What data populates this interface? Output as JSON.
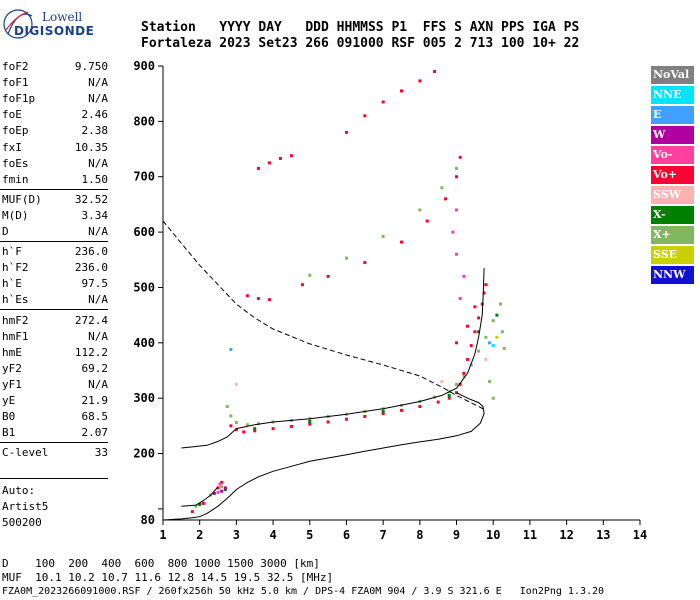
{
  "logo": {
    "line1": "Lowell",
    "line2": "DIGISONDE"
  },
  "header": {
    "row1": "Station   YYYY DAY   DDD HHMMSS P1  FFS S AXN PPS IGA PS",
    "row2": "Fortaleza 2023 Set23 266 091000 RSF 005 2 713 100 10+ 22"
  },
  "params": [
    {
      "name": "foF2",
      "value": "9.750"
    },
    {
      "name": "foF1",
      "value": "N/A"
    },
    {
      "name": "foF1p",
      "value": "N/A"
    },
    {
      "name": "foE",
      "value": "2.46"
    },
    {
      "name": "foEp",
      "value": "2.38"
    },
    {
      "name": "fxI",
      "value": "10.35"
    },
    {
      "name": "foEs",
      "value": "N/A"
    },
    {
      "name": "fmin",
      "value": "1.50"
    },
    {
      "name": "MUF(D)",
      "value": "32.52"
    },
    {
      "name": "M(D)",
      "value": "3.34"
    },
    {
      "name": "D",
      "value": "N/A"
    },
    {
      "name": "h`F",
      "value": "236.0"
    },
    {
      "name": "h`F2",
      "value": "236.0"
    },
    {
      "name": "h`E",
      "value": "97.5"
    },
    {
      "name": "h`Es",
      "value": "N/A"
    },
    {
      "name": "hmF2",
      "value": "272.4"
    },
    {
      "name": "hmF1",
      "value": "N/A"
    },
    {
      "name": "hmE",
      "value": "112.2"
    },
    {
      "name": "yF2",
      "value": "69.2"
    },
    {
      "name": "yF1",
      "value": "N/A"
    },
    {
      "name": "yE",
      "value": "21.9"
    },
    {
      "name": "B0",
      "value": "68.5"
    },
    {
      "name": "B1",
      "value": "2.07"
    },
    {
      "name": "C-level",
      "value": "33"
    }
  ],
  "autoscaler": {
    "line1": "Auto:",
    "line2": "Artist5",
    "line3": "500200"
  },
  "legend": [
    {
      "label": "NoVal",
      "color": "#808080"
    },
    {
      "label": "NNE",
      "color": "#00e5ff"
    },
    {
      "label": "E",
      "color": "#3fa0ff"
    },
    {
      "label": "W",
      "color": "#b000a0"
    },
    {
      "label": "Vo-",
      "color": "#ff40a0"
    },
    {
      "label": "Vo+",
      "color": "#ff0033"
    },
    {
      "label": "SSW",
      "color": "#ffb0b0"
    },
    {
      "label": "X-",
      "color": "#008000"
    },
    {
      "label": "X+",
      "color": "#80b860"
    },
    {
      "label": "SSE",
      "color": "#c8d000"
    },
    {
      "label": "NNW",
      "color": "#1010d0"
    }
  ],
  "footer": {
    "d_row": "D    100  200  400  600  800 1000 1500 3000 [km]",
    "muf_row": "MUF  10.1 10.2 10.7 11.6 12.8 14.5 19.5 32.5 [MHz]",
    "file_row": "FZA0M_2023266091000.RSF / 260fx256h 50 kHz 5.0 km / DPS-4 FZA0M 904 / 3.9 S 321.6 E   Ion2Png 1.3.20"
  },
  "chart_data": {
    "type": "scatter",
    "xlim": [
      1,
      14
    ],
    "ylim": [
      80,
      900
    ],
    "x_ticks": [
      1,
      2,
      3,
      4,
      5,
      6,
      7,
      8,
      9,
      10,
      11,
      12,
      13,
      14
    ],
    "y_ticks": [
      100,
      200,
      300,
      400,
      500,
      600,
      700,
      800,
      900
    ],
    "y_tick_labels": [
      "",
      "200",
      "300",
      "400",
      "500",
      "600",
      "700",
      "800",
      "900"
    ],
    "x_tick_labels": [
      "1",
      "2",
      "3",
      "4",
      "5",
      "6",
      "7",
      "8",
      "9",
      "10",
      "11",
      "12",
      "13",
      "14"
    ],
    "y_axis_bottom_label": "80",
    "grid": false,
    "legend_position": "right",
    "series": [
      {
        "name": "X+",
        "color": "#80b860",
        "points": [
          [
            2.75,
            285
          ],
          [
            2.85,
            268
          ],
          [
            3.0,
            256
          ],
          [
            3.3,
            252
          ],
          [
            3.6,
            254
          ],
          [
            4.0,
            257
          ],
          [
            4.5,
            260
          ],
          [
            5.0,
            263
          ],
          [
            5.5,
            267
          ],
          [
            6.0,
            271
          ],
          [
            6.5,
            276
          ],
          [
            7.0,
            281
          ],
          [
            7.5,
            287
          ],
          [
            8.0,
            294
          ],
          [
            8.4,
            302
          ],
          [
            8.8,
            312
          ],
          [
            9.0,
            325
          ],
          [
            9.2,
            340
          ],
          [
            9.4,
            360
          ],
          [
            9.6,
            385
          ],
          [
            9.8,
            410
          ],
          [
            10.0,
            440
          ],
          [
            10.2,
            470
          ],
          [
            10.3,
            390
          ],
          [
            10.25,
            420
          ],
          [
            9.9,
            330
          ],
          [
            10.0,
            300
          ],
          [
            5.0,
            522
          ],
          [
            6.0,
            553
          ],
          [
            7.0,
            592
          ],
          [
            8.0,
            640
          ],
          [
            8.6,
            680
          ],
          [
            9.0,
            715
          ],
          [
            2.3,
            125
          ],
          [
            2.6,
            140
          ],
          [
            1.9,
            105
          ],
          [
            2.1,
            110
          ]
        ]
      },
      {
        "name": "Vo+",
        "color": "#ff0033",
        "points": [
          [
            2.85,
            250
          ],
          [
            3.0,
            243
          ],
          [
            3.2,
            239
          ],
          [
            3.5,
            241
          ],
          [
            4.0,
            245
          ],
          [
            4.5,
            249
          ],
          [
            5.0,
            253
          ],
          [
            5.5,
            257
          ],
          [
            6.0,
            262
          ],
          [
            6.5,
            267
          ],
          [
            7.0,
            272
          ],
          [
            7.5,
            278
          ],
          [
            8.0,
            285
          ],
          [
            8.5,
            293
          ],
          [
            8.8,
            300
          ],
          [
            9.0,
            310
          ],
          [
            9.1,
            325
          ],
          [
            9.2,
            345
          ],
          [
            9.3,
            370
          ],
          [
            9.4,
            395
          ],
          [
            9.5,
            420
          ],
          [
            9.6,
            445
          ],
          [
            9.7,
            470
          ],
          [
            9.75,
            490
          ],
          [
            9.8,
            505
          ],
          [
            9.5,
            465
          ],
          [
            9.3,
            430
          ],
          [
            9.0,
            400
          ],
          [
            3.3,
            485
          ],
          [
            3.6,
            480
          ],
          [
            3.9,
            478
          ],
          [
            4.8,
            505
          ],
          [
            5.5,
            520
          ],
          [
            6.5,
            545
          ],
          [
            7.5,
            582
          ],
          [
            8.2,
            620
          ],
          [
            8.7,
            660
          ],
          [
            9.0,
            700
          ],
          [
            9.1,
            735
          ],
          [
            3.6,
            715
          ],
          [
            3.9,
            725
          ],
          [
            4.2,
            733
          ],
          [
            4.5,
            738
          ],
          [
            6.0,
            780
          ],
          [
            6.5,
            810
          ],
          [
            7.0,
            835
          ],
          [
            7.5,
            855
          ],
          [
            8.0,
            873
          ],
          [
            8.4,
            890
          ],
          [
            1.8,
            95
          ],
          [
            2.1,
            110
          ],
          [
            2.5,
            138
          ],
          [
            2.6,
            148
          ]
        ]
      },
      {
        "name": "Vo-",
        "color": "#ff40a0",
        "points": [
          [
            9.1,
            480
          ],
          [
            9.2,
            520
          ],
          [
            9.0,
            560
          ],
          [
            8.9,
            600
          ],
          [
            9.0,
            640
          ],
          [
            2.5,
            130
          ],
          [
            2.55,
            145
          ]
        ]
      },
      {
        "name": "X-",
        "color": "#008000",
        "points": [
          [
            3.5,
            245
          ],
          [
            5.0,
            258
          ],
          [
            7.0,
            276
          ],
          [
            8.8,
            305
          ],
          [
            9.6,
            420
          ],
          [
            10.1,
            450
          ],
          [
            2.0,
            108
          ],
          [
            2.7,
            135
          ]
        ]
      },
      {
        "name": "W",
        "color": "#b000a0",
        "points": [
          [
            2.4,
            128
          ],
          [
            2.6,
            132
          ],
          [
            2.7,
            138
          ]
        ]
      },
      {
        "name": "SSW",
        "color": "#ffb0b0",
        "points": [
          [
            8.6,
            330
          ],
          [
            9.8,
            370
          ],
          [
            3.0,
            325
          ]
        ]
      },
      {
        "name": "E",
        "color": "#3fa0ff",
        "points": [
          [
            2.85,
            388
          ],
          [
            9.9,
            400
          ]
        ]
      },
      {
        "name": "NNE",
        "color": "#00e5ff",
        "points": [
          [
            10.0,
            395
          ]
        ]
      },
      {
        "name": "SSE",
        "color": "#c8d000",
        "points": [
          [
            10.1,
            410
          ]
        ]
      }
    ],
    "trace_curve": [
      [
        1.5,
        210
      ],
      [
        1.8,
        212
      ],
      [
        2.2,
        215
      ],
      [
        2.5,
        222
      ],
      [
        2.75,
        230
      ],
      [
        3.0,
        245
      ],
      [
        3.5,
        252
      ],
      [
        4.0,
        257
      ],
      [
        5.0,
        263
      ],
      [
        6.0,
        271
      ],
      [
        7.0,
        281
      ],
      [
        8.0,
        294
      ],
      [
        8.6,
        305
      ],
      [
        9.0,
        318
      ],
      [
        9.3,
        345
      ],
      [
        9.5,
        380
      ],
      [
        9.6,
        410
      ],
      [
        9.7,
        450
      ],
      [
        9.73,
        490
      ],
      [
        9.75,
        535
      ]
    ],
    "lower_trace": [
      [
        1.5,
        105
      ],
      [
        1.9,
        107
      ],
      [
        2.1,
        115
      ],
      [
        2.3,
        125
      ],
      [
        2.5,
        140
      ]
    ],
    "profile_curve": [
      [
        1.0,
        80
      ],
      [
        1.5,
        82
      ],
      [
        1.8,
        84
      ],
      [
        2.0,
        86
      ],
      [
        2.2,
        92
      ],
      [
        2.5,
        105
      ],
      [
        2.8,
        122
      ],
      [
        3.0,
        135
      ],
      [
        3.3,
        148
      ],
      [
        3.6,
        158
      ],
      [
        4.0,
        168
      ],
      [
        4.5,
        177
      ],
      [
        5.0,
        186
      ],
      [
        5.5,
        192
      ],
      [
        6.0,
        198
      ],
      [
        6.5,
        204
      ],
      [
        7.0,
        210
      ],
      [
        7.5,
        216
      ],
      [
        8.0,
        221
      ],
      [
        8.5,
        226
      ],
      [
        9.0,
        232
      ],
      [
        9.4,
        240
      ],
      [
        9.65,
        255
      ],
      [
        9.75,
        272
      ],
      [
        9.72,
        285
      ],
      [
        9.6,
        292
      ],
      [
        9.3,
        300
      ],
      [
        9.0,
        310
      ]
    ],
    "muf_dashed_curve": [
      [
        1.0,
        620
      ],
      [
        1.5,
        580
      ],
      [
        2.0,
        540
      ],
      [
        2.5,
        505
      ],
      [
        3.0,
        470
      ],
      [
        3.5,
        445
      ],
      [
        4.0,
        425
      ],
      [
        5.0,
        398
      ],
      [
        6.0,
        378
      ],
      [
        7.0,
        360
      ],
      [
        8.0,
        340
      ],
      [
        8.6,
        320
      ],
      [
        9.0,
        305
      ],
      [
        9.3,
        295
      ],
      [
        9.6,
        285
      ],
      [
        9.8,
        278
      ]
    ]
  }
}
